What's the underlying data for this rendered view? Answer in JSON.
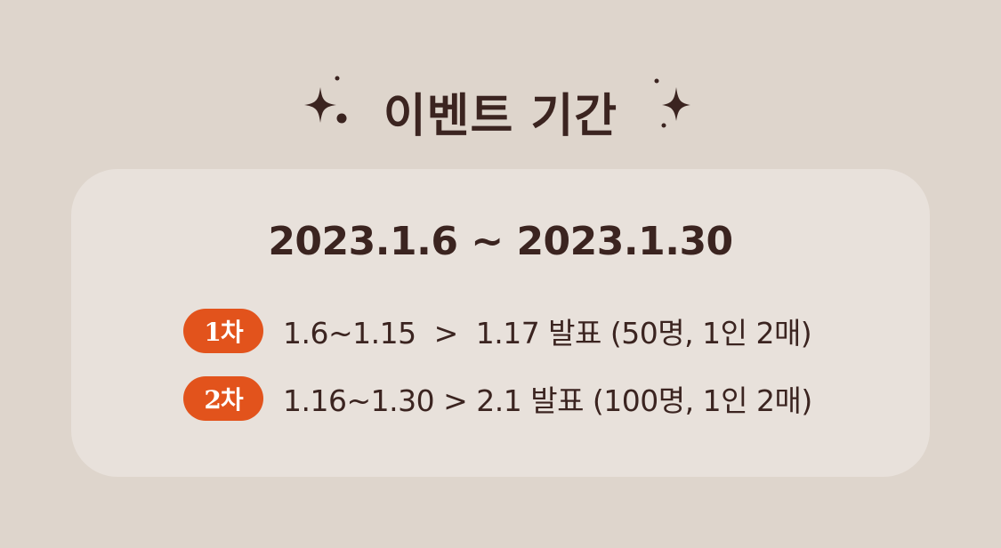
{
  "header": {
    "title": "이벤트 기간"
  },
  "card": {
    "period": "2023.1.6 ~ 2023.1.30",
    "rounds": [
      {
        "badge": "1차",
        "schedule": "1.6~1.15  >  1.17 발표 (50명, 1인 2매)"
      },
      {
        "badge": "2차",
        "schedule": "1.16~1.30 > 2.1 발표 (100명, 1인 2매)"
      }
    ]
  },
  "colors": {
    "background": "#ded5cc",
    "card": "#e8e1db",
    "text": "#3b2420",
    "badge": "#e2531c"
  },
  "icons": {
    "left": "sparkle-icon",
    "right": "sparkle-icon"
  }
}
